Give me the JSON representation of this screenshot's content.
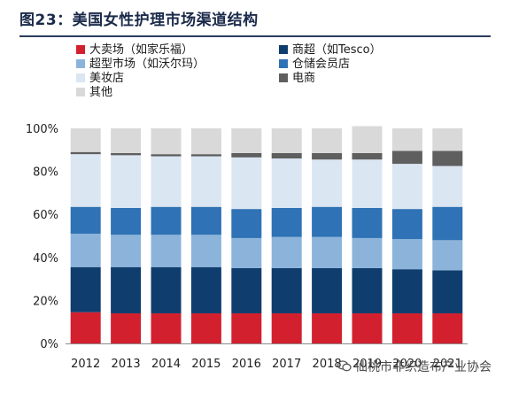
{
  "title": "图23：美国女性护理市场渠道结构",
  "watermark": "仙桃市非织造布产业协会",
  "chart_data": {
    "type": "bar",
    "stacked": true,
    "categories": [
      "2012",
      "2013",
      "2014",
      "2015",
      "2016",
      "2017",
      "2018",
      "2019",
      "2020",
      "2021"
    ],
    "y_ticks": [
      "0%",
      "20%",
      "40%",
      "60%",
      "80%",
      "100%"
    ],
    "ylim": [
      0,
      100
    ],
    "legend_position": "top",
    "series": [
      {
        "name": "大卖场（如家乐福）",
        "color": "#d3202f",
        "values": [
          14.5,
          14,
          14,
          14,
          14,
          14,
          14,
          14,
          14,
          14
        ]
      },
      {
        "name": "商超（如Tesco）",
        "color": "#0f3d6e",
        "values": [
          21,
          21.5,
          21.5,
          21.5,
          21,
          21,
          21,
          21,
          20.5,
          20
        ]
      },
      {
        "name": "超型市场（如沃尔玛）",
        "color": "#8cb4db",
        "values": [
          15.5,
          15,
          15,
          15,
          14,
          14.5,
          14.5,
          14,
          14,
          14
        ]
      },
      {
        "name": "仓储会员店",
        "color": "#2f72b5",
        "values": [
          12.5,
          12.5,
          13,
          13,
          13.5,
          13.5,
          14,
          14,
          14,
          15.5
        ]
      },
      {
        "name": "美妆店",
        "color": "#dbe6f3",
        "values": [
          24.5,
          24.5,
          23.5,
          23.5,
          24,
          23,
          22,
          22.5,
          21,
          19
        ]
      },
      {
        "name": "电商",
        "color": "#5f5f5f",
        "values": [
          1,
          1,
          1,
          1,
          2,
          2.5,
          3,
          3,
          6,
          7
        ]
      },
      {
        "name": "其他",
        "color": "#d9d9d9",
        "values": [
          11,
          11.5,
          12,
          12,
          11.5,
          11.5,
          11.5,
          12.5,
          10.5,
          10.5
        ]
      }
    ]
  }
}
